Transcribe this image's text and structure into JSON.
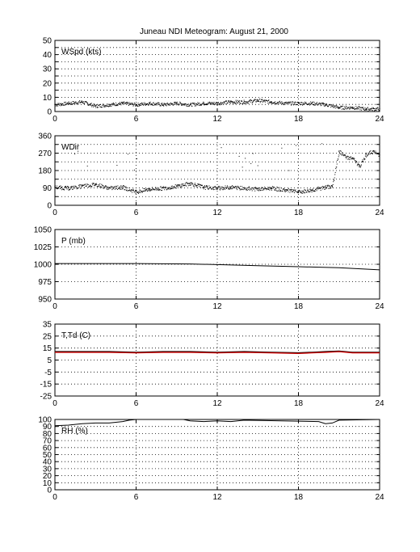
{
  "title": "Juneau NDI Meteogram:     August 21, 2000",
  "chart_data": [
    {
      "type": "scatter",
      "label": "WSpd (kts)",
      "xlim": [
        0,
        24
      ],
      "ylim": [
        0,
        50
      ],
      "xticks": [
        0,
        6,
        12,
        18,
        24
      ],
      "yticks": [
        0,
        5,
        10,
        15,
        20,
        25,
        30,
        35,
        40,
        45,
        50
      ],
      "yticklabels": [
        "0",
        "",
        "10",
        "",
        "20",
        "",
        "30",
        "",
        "40",
        "",
        "50"
      ],
      "grid": true,
      "series": [
        {
          "color": "#000000",
          "style": "dots",
          "x": [
            0,
            1,
            2,
            3,
            4,
            5,
            6,
            7,
            8,
            9,
            10,
            11,
            12,
            13,
            14,
            15,
            16,
            17,
            18,
            19,
            20,
            21,
            22,
            23,
            24
          ],
          "y": [
            5,
            6,
            7,
            4,
            5,
            6,
            5,
            6,
            5,
            6,
            5,
            6,
            6,
            7,
            7,
            8,
            7,
            6,
            6,
            6,
            5,
            3,
            3,
            2,
            2
          ]
        }
      ]
    },
    {
      "type": "scatter",
      "label": "WDir",
      "xlim": [
        0,
        24
      ],
      "ylim": [
        0,
        360
      ],
      "xticks": [
        0,
        6,
        12,
        18,
        24
      ],
      "yticks": [
        0,
        45,
        90,
        135,
        180,
        225,
        270,
        315,
        360
      ],
      "yticklabels": [
        "0",
        "",
        "90",
        "",
        "180",
        "",
        "270",
        "",
        "360"
      ],
      "grid": true,
      "series": [
        {
          "color": "#000000",
          "style": "dots",
          "x": [
            0,
            1,
            2,
            3,
            4,
            5,
            6,
            7,
            8,
            9,
            10,
            11,
            12,
            13,
            14,
            15,
            16,
            17,
            18,
            19,
            20,
            20.5,
            21,
            21.5,
            22,
            22.5,
            23,
            23.5,
            24
          ],
          "y": [
            95,
            90,
            100,
            110,
            90,
            95,
            70,
            85,
            90,
            100,
            115,
            95,
            90,
            95,
            90,
            85,
            90,
            80,
            70,
            80,
            95,
            100,
            280,
            250,
            245,
            200,
            265,
            280,
            260
          ]
        }
      ]
    },
    {
      "type": "line",
      "label": "P (mb)",
      "xlim": [
        0,
        24
      ],
      "ylim": [
        950,
        1050
      ],
      "xticks": [
        0,
        6,
        12,
        18,
        24
      ],
      "yticks": [
        950,
        975,
        1000,
        1025,
        1050
      ],
      "yticklabels": [
        "950",
        "975",
        "1000",
        "1025",
        "1050"
      ],
      "grid": true,
      "series": [
        {
          "color": "#000000",
          "style": "line",
          "x": [
            0,
            6,
            10,
            12,
            15,
            18,
            21,
            24
          ],
          "y": [
            1001,
            1001,
            1000.5,
            999.5,
            998,
            996.5,
            995,
            992
          ]
        }
      ]
    },
    {
      "type": "line",
      "label": "T,Td (C)",
      "xlim": [
        0,
        24
      ],
      "ylim": [
        -25,
        35
      ],
      "xticks": [
        0,
        6,
        12,
        18,
        24
      ],
      "yticks": [
        -25,
        -15,
        -5,
        5,
        15,
        25,
        35
      ],
      "yticklabels": [
        "-25",
        "-15",
        "-5",
        "5",
        "15",
        "25",
        "35"
      ],
      "grid": true,
      "series": [
        {
          "color": "#000000",
          "style": "line",
          "x": [
            0,
            2,
            4,
            6,
            8,
            10,
            12,
            14,
            16,
            18,
            19,
            20,
            21,
            22,
            24
          ],
          "y": [
            12,
            12,
            12,
            11.5,
            12,
            12,
            11.5,
            12,
            11.5,
            11,
            11.5,
            12,
            12.5,
            11.5,
            11.5
          ]
        },
        {
          "color": "#cc0000",
          "style": "line",
          "x": [
            0,
            2,
            4,
            6,
            8,
            10,
            12,
            14,
            16,
            18,
            19,
            20,
            21,
            22,
            24
          ],
          "y": [
            11.5,
            11.5,
            11.5,
            11,
            11.5,
            11.5,
            11,
            11.5,
            11,
            10.5,
            11,
            11.5,
            12,
            11,
            11
          ]
        }
      ]
    },
    {
      "type": "line",
      "label": "RH (%)",
      "xlim": [
        0,
        24
      ],
      "ylim": [
        0,
        100
      ],
      "xticks": [
        0,
        6,
        12,
        18,
        24
      ],
      "yticks": [
        0,
        10,
        20,
        30,
        40,
        50,
        60,
        70,
        80,
        90,
        100
      ],
      "yticklabels": [
        "0",
        "10",
        "20",
        "30",
        "40",
        "50",
        "60",
        "70",
        "80",
        "90",
        "100"
      ],
      "grid": true,
      "series": [
        {
          "color": "#000000",
          "style": "line",
          "x": [
            0,
            1,
            2,
            3,
            4,
            5,
            5.5,
            6,
            9.5,
            10,
            11,
            12,
            13,
            14,
            19.5,
            20,
            20.5,
            21,
            24
          ],
          "y": [
            91,
            92,
            94,
            95,
            95,
            97,
            99,
            100,
            100,
            98,
            97,
            98,
            97,
            99,
            97,
            94,
            95,
            99,
            100
          ]
        }
      ]
    }
  ]
}
